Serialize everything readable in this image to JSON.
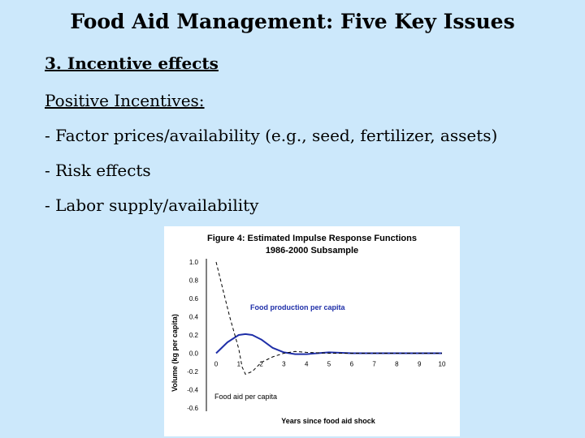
{
  "slide": {
    "title": "Food Aid Management: Five Key Issues",
    "section": "3. Incentive effects",
    "subheading": "Positive Incentives:",
    "bullets": [
      "- Factor prices/availability (e.g., seed, fertilizer, assets)",
      "- Risk effects",
      "- Labor supply/availability"
    ]
  },
  "chart_data": {
    "type": "line",
    "title": "Figure 4: Estimated Impulse Response Functions",
    "subtitle": "1986-2000 Subsample",
    "xlabel": "Years since food aid shock",
    "ylabel": "Volume (kg per capita)",
    "xlim": [
      0,
      10
    ],
    "ylim": [
      -0.6,
      1.0
    ],
    "x_ticks": [
      0,
      1,
      2,
      3,
      4,
      5,
      6,
      7,
      8,
      9,
      10
    ],
    "y_ticks": [
      1.0,
      0.8,
      0.6,
      0.4,
      0.2,
      0.0,
      -0.2,
      -0.4,
      -0.6
    ],
    "y_tick_labels": [
      "1.0",
      "0.8",
      "0.6",
      "0.4",
      "0.2",
      "0.0",
      "-0.2",
      "-0.4",
      "-0.6"
    ],
    "grid": false,
    "series": [
      {
        "name": "Food production per capita",
        "color": "#1f2fa8",
        "style": "solid",
        "x": [
          0,
          0.5,
          1,
          1.3,
          1.6,
          2,
          2.5,
          3,
          3.5,
          4,
          5,
          6,
          7,
          8,
          9,
          10
        ],
        "y": [
          0,
          0.12,
          0.2,
          0.21,
          0.2,
          0.15,
          0.06,
          0.01,
          -0.01,
          -0.01,
          0.01,
          0.0,
          0.0,
          0.0,
          0.0,
          0.0
        ]
      },
      {
        "name": "Food aid per capita",
        "color": "#000000",
        "style": "dashed",
        "x": [
          0,
          0.3,
          0.6,
          1,
          1.15,
          1.3,
          1.6,
          2,
          2.5,
          3,
          3.5,
          4,
          5,
          6,
          7,
          8,
          9,
          10
        ],
        "y": [
          1.0,
          0.7,
          0.4,
          0.05,
          -0.15,
          -0.23,
          -0.2,
          -0.1,
          -0.04,
          0.0,
          0.02,
          0.01,
          0.0,
          0.0,
          0.0,
          0.0,
          0.0,
          0.0
        ]
      }
    ]
  }
}
